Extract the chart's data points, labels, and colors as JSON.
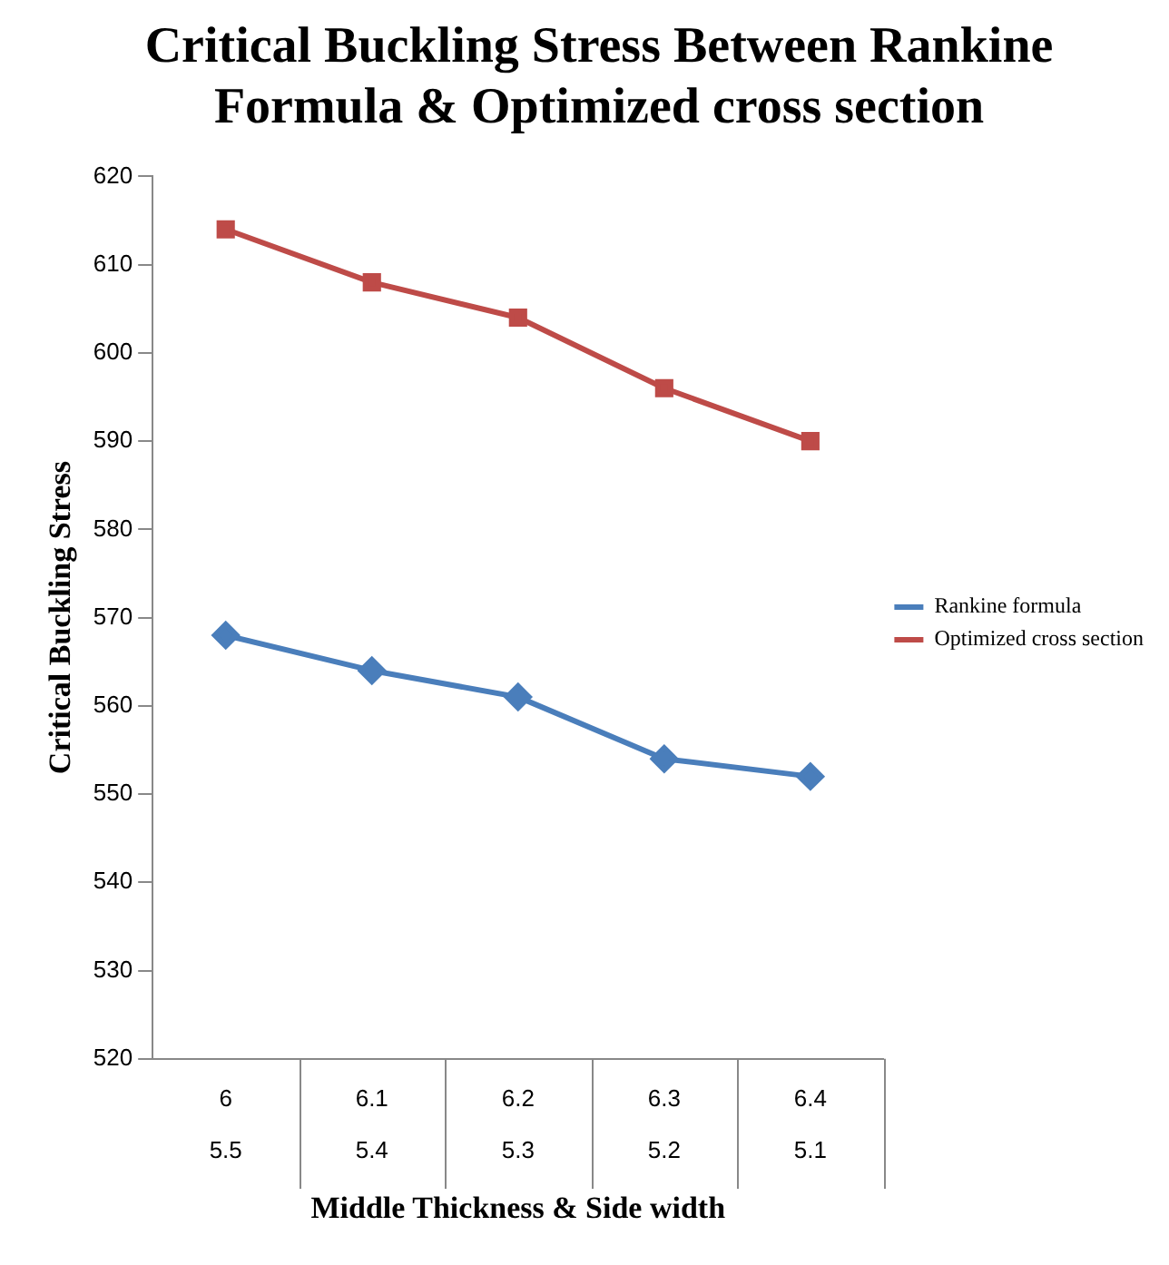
{
  "chart_data": {
    "type": "line",
    "title": "Critical Buckling Stress Between Rankine Formula & Optimized cross section",
    "xlabel": "Middle Thickness & Side width",
    "ylabel": "Critical Buckling Stress",
    "categories": [
      "6\n5.5",
      "6.1\n5.4",
      "6.2\n5.3",
      "6.3\n5.2",
      "6.4\n5.1"
    ],
    "series": [
      {
        "name": "Rankine formula",
        "color": "#4a7ebb",
        "marker": "diamond",
        "values": [
          568,
          564,
          561,
          554,
          552
        ]
      },
      {
        "name": "Optimized cross section",
        "color": "#be4b48",
        "marker": "square",
        "values": [
          614,
          608,
          604,
          596,
          590
        ]
      }
    ],
    "ylim": [
      520,
      620
    ],
    "yticks": [
      520,
      530,
      540,
      550,
      560,
      570,
      580,
      590,
      600,
      610,
      620
    ],
    "grid": false,
    "legend": "right",
    "line_style": "solid"
  }
}
